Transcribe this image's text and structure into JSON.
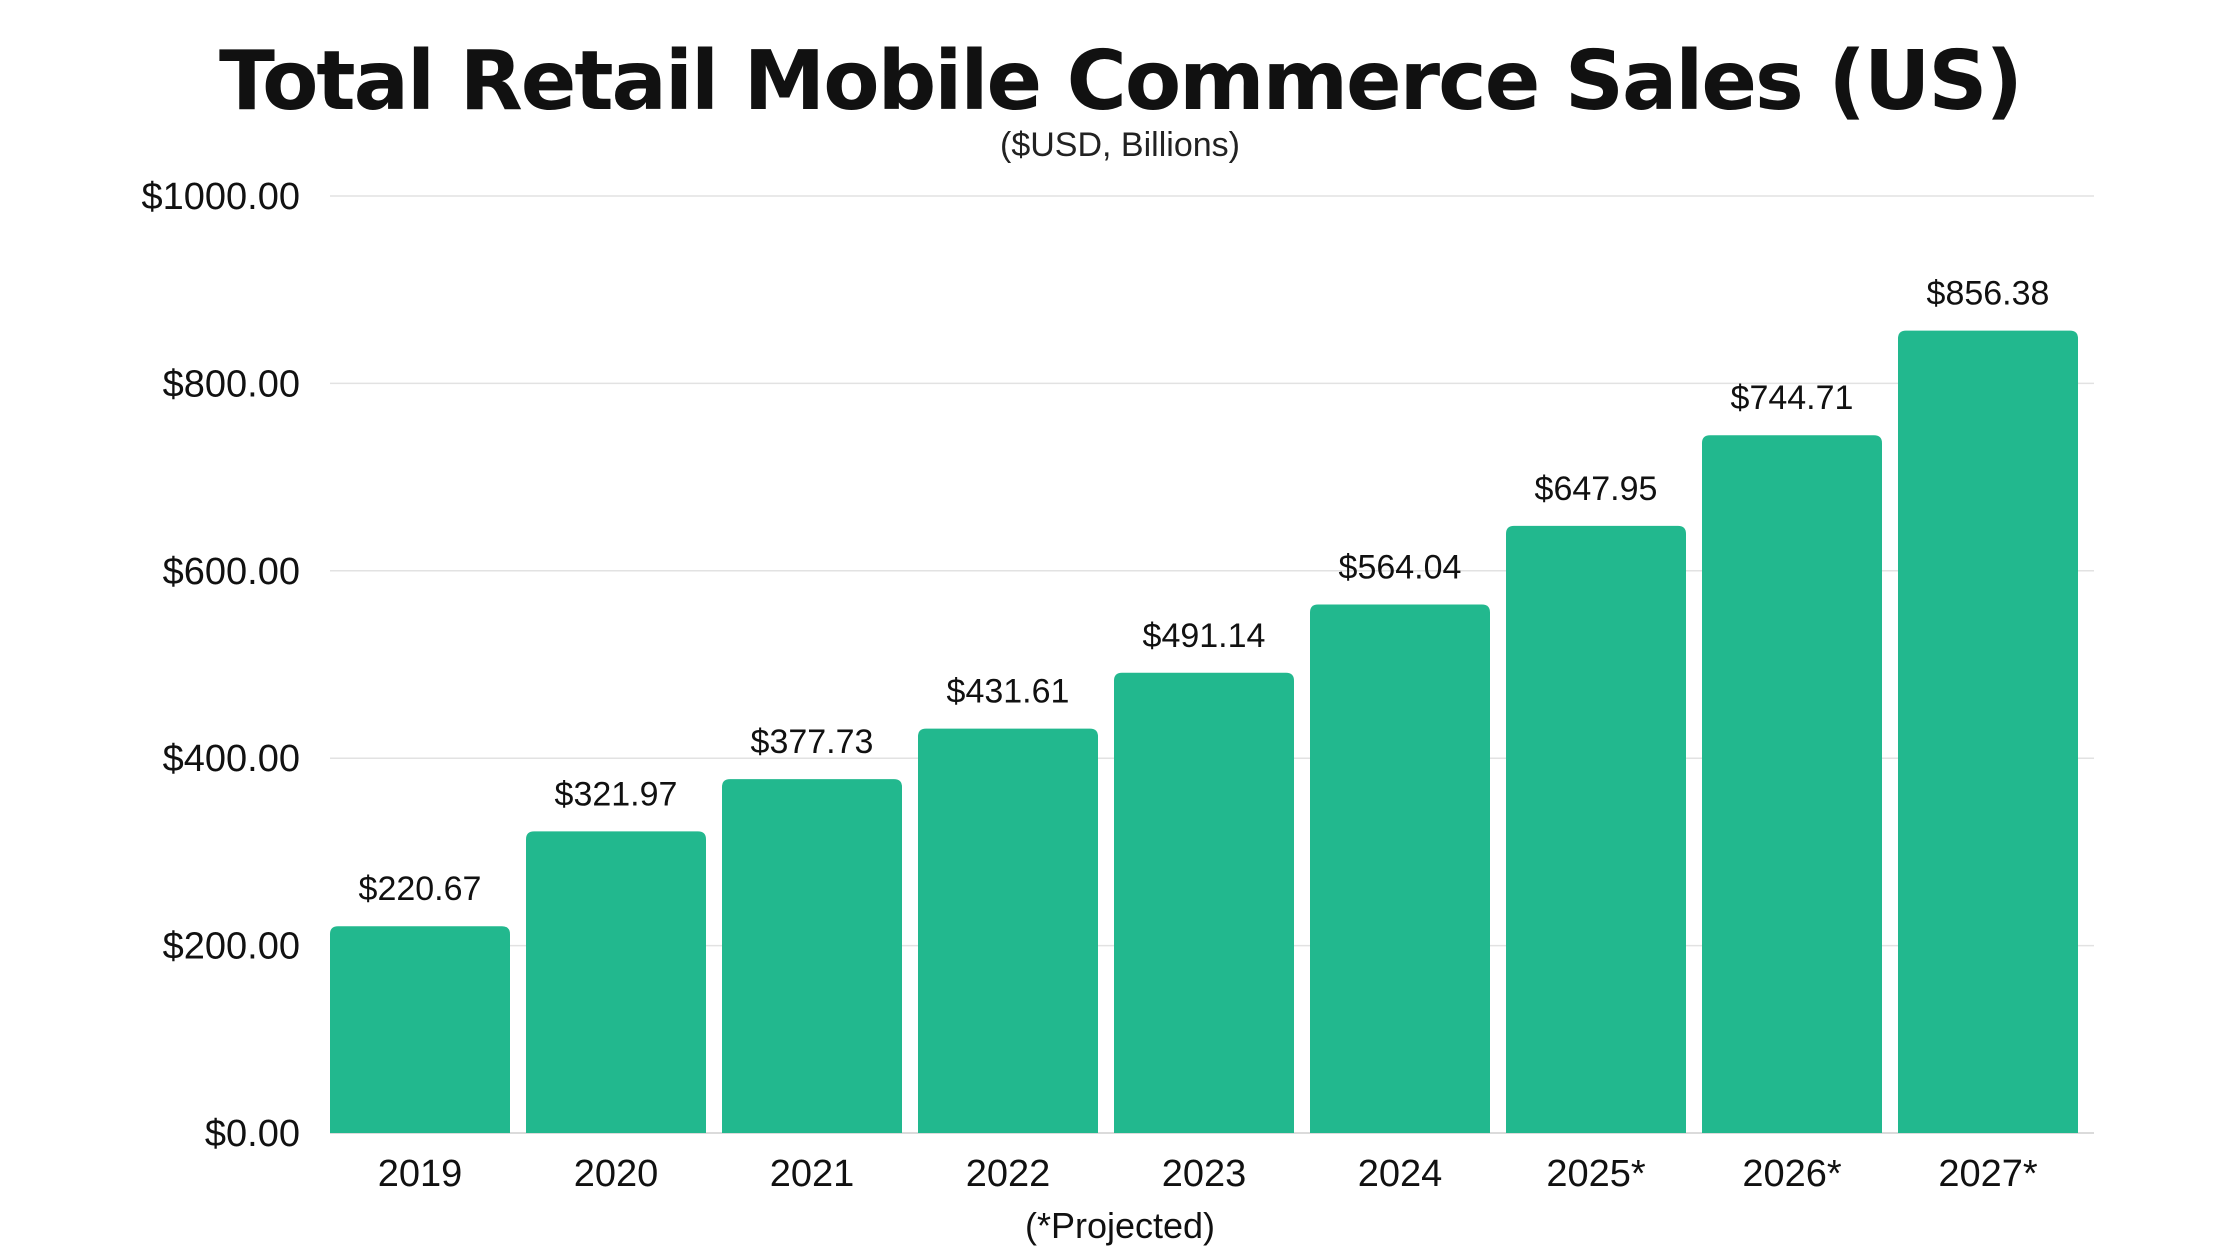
{
  "chart_data": {
    "type": "bar",
    "title": "Total Retail Mobile Commerce Sales (US)",
    "subtitle": "($USD, Billions)",
    "xlabel": "(*Projected)",
    "ylabel": "",
    "categories": [
      "2019",
      "2020",
      "2021",
      "2022",
      "2023",
      "2024",
      "2025*",
      "2026*",
      "2027*"
    ],
    "values": [
      220.67,
      321.97,
      377.73,
      431.61,
      491.14,
      564.04,
      647.95,
      744.71,
      856.38
    ],
    "value_labels": [
      "$220.67",
      "$321.97",
      "$377.73",
      "$431.61",
      "$491.14",
      "$564.04",
      "$647.95",
      "$744.71",
      "$856.38"
    ],
    "ylim": [
      0,
      1000
    ],
    "yticks": [
      0,
      200,
      400,
      600,
      800,
      1000
    ],
    "ytick_labels": [
      "$0.00",
      "$200.00",
      "$400.00",
      "$600.00",
      "$800.00",
      "$1000.00"
    ],
    "grid": true,
    "bar_color": "#22b88e",
    "grid_color": "#e2e2e2"
  }
}
